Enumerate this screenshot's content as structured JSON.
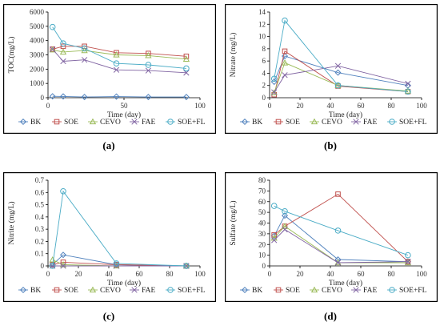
{
  "colors": {
    "BK": "#4f81bd",
    "SOE": "#c0504d",
    "CEVO": "#9bbb59",
    "FAE": "#8064a2",
    "SOE+FL": "#4bacc6"
  },
  "legend_labels": [
    "BK",
    "SOE",
    "CEVO",
    "FAE",
    "SOE+FL"
  ],
  "chart_data": [
    {
      "type": "line",
      "caption": "(a)",
      "xlabel": "Time (day)",
      "ylabel": "TOC(mg/L)",
      "xlim": [
        0,
        100
      ],
      "ylim": [
        0,
        6000
      ],
      "xticks": [
        "0",
        "50",
        "100"
      ],
      "yticks": [
        "0",
        "1000",
        "2000",
        "3000",
        "4000",
        "5000",
        "6000"
      ],
      "legend_position": "bottom",
      "series": [
        {
          "name": "BK",
          "x": [
            3,
            10,
            24,
            45,
            66,
            91
          ],
          "y": [
            100,
            90,
            50,
            80,
            50,
            50
          ]
        },
        {
          "name": "SOE",
          "x": [
            3,
            10,
            24,
            45,
            66,
            91
          ],
          "y": [
            3400,
            3600,
            3600,
            3150,
            3100,
            2900
          ]
        },
        {
          "name": "CEVO",
          "x": [
            3,
            10,
            24,
            45,
            66,
            91
          ],
          "y": [
            3350,
            3200,
            3300,
            3000,
            2950,
            2700
          ]
        },
        {
          "name": "FAE",
          "x": [
            3,
            10,
            24,
            45,
            66,
            91
          ],
          "y": [
            3400,
            2550,
            2650,
            1950,
            1900,
            1750
          ]
        },
        {
          "name": "SOE+FL",
          "x": [
            3,
            10,
            24,
            45,
            66,
            91
          ],
          "y": [
            4950,
            3800,
            3450,
            2400,
            2300,
            2050
          ]
        }
      ]
    },
    {
      "type": "line",
      "caption": "(b)",
      "xlabel": "Time (day)",
      "ylabel": "Nitrate (mg/L)",
      "xlim": [
        0,
        100
      ],
      "ylim": [
        0,
        14
      ],
      "xticks": [
        "0",
        "20",
        "40",
        "60",
        "80",
        "100"
      ],
      "yticks": [
        "0",
        "2",
        "4",
        "6",
        "8",
        "10",
        "12",
        "14"
      ],
      "legend_position": "bottom",
      "series": [
        {
          "name": "BK",
          "x": [
            3,
            10,
            45,
            91
          ],
          "y": [
            2.6,
            6.8,
            4.1,
            2.0
          ]
        },
        {
          "name": "SOE",
          "x": [
            3,
            10,
            45,
            91
          ],
          "y": [
            0.5,
            7.6,
            1.9,
            1.0
          ]
        },
        {
          "name": "CEVO",
          "x": [
            3,
            10,
            45,
            91
          ],
          "y": [
            0.8,
            5.7,
            2.0,
            1.1
          ]
        },
        {
          "name": "FAE",
          "x": [
            3,
            10,
            45,
            91
          ],
          "y": [
            0.9,
            3.7,
            5.2,
            2.3
          ]
        },
        {
          "name": "SOE+FL",
          "x": [
            3,
            10,
            45,
            91
          ],
          "y": [
            3.1,
            12.6,
            2.0,
            1.0
          ]
        }
      ]
    },
    {
      "type": "line",
      "caption": "(c)",
      "xlabel": "Time (day)",
      "ylabel": "Nitrite (mg/L)",
      "xlim": [
        0,
        100
      ],
      "ylim": [
        0,
        0.7
      ],
      "xticks": [
        "0",
        "20",
        "40",
        "60",
        "80",
        "100"
      ],
      "yticks": [
        "0",
        "0.1",
        "0.2",
        "0.3",
        "0.4",
        "0.5",
        "0.6",
        "0.7"
      ],
      "legend_position": "bottom",
      "series": [
        {
          "name": "BK",
          "x": [
            3,
            10,
            45,
            91
          ],
          "y": [
            0.01,
            0.09,
            0.01,
            0.0
          ]
        },
        {
          "name": "SOE",
          "x": [
            3,
            10,
            45,
            91
          ],
          "y": [
            0.01,
            0.03,
            0.01,
            0.0
          ]
        },
        {
          "name": "CEVO",
          "x": [
            3,
            10,
            45,
            91
          ],
          "y": [
            0.05,
            0.01,
            0.0,
            0.0
          ]
        },
        {
          "name": "FAE",
          "x": [
            3,
            10,
            45,
            91
          ],
          "y": [
            0.0,
            0.0,
            0.0,
            0.0
          ]
        },
        {
          "name": "SOE+FL",
          "x": [
            3,
            10,
            45,
            91
          ],
          "y": [
            0.0,
            0.61,
            0.02,
            0.0
          ]
        }
      ]
    },
    {
      "type": "line",
      "caption": "(d)",
      "xlabel": "Time (day)",
      "ylabel": "Sulfate (mg/L)",
      "xlim": [
        0,
        100
      ],
      "ylim": [
        0,
        80
      ],
      "xticks": [
        "0",
        "20",
        "40",
        "60",
        "80",
        "100"
      ],
      "yticks": [
        "0",
        "10",
        "20",
        "30",
        "40",
        "50",
        "60",
        "70",
        "80"
      ],
      "legend_position": "bottom",
      "series": [
        {
          "name": "BK",
          "x": [
            3,
            10,
            45,
            91
          ],
          "y": [
            28,
            47,
            6,
            4
          ]
        },
        {
          "name": "SOE",
          "x": [
            3,
            10,
            45,
            91
          ],
          "y": [
            29,
            37,
            67,
            4
          ]
        },
        {
          "name": "CEVO",
          "x": [
            3,
            10,
            45,
            91
          ],
          "y": [
            26,
            37,
            3,
            3
          ]
        },
        {
          "name": "FAE",
          "x": [
            3,
            10,
            45,
            91
          ],
          "y": [
            24,
            34,
            3,
            4
          ]
        },
        {
          "name": "SOE+FL",
          "x": [
            3,
            10,
            45,
            91
          ],
          "y": [
            56,
            51,
            33,
            10
          ]
        }
      ]
    }
  ]
}
